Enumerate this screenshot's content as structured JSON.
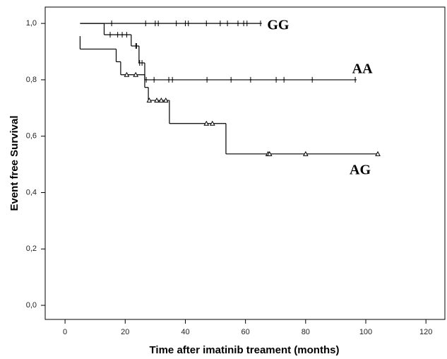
{
  "chart_data": {
    "type": "survival",
    "x_label": "Time after imatinib treament (months)",
    "y_label": "Event free Survival",
    "xlim": [
      -6.6,
      126.3
    ],
    "ylim": [
      -0.05,
      1.058
    ],
    "xticks": [
      0,
      20,
      40,
      60,
      80,
      100,
      120
    ],
    "yticks": [
      {
        "value": 0,
        "label": "0,0"
      },
      {
        "value": 0.2,
        "label": "0,2"
      },
      {
        "value": 0.4,
        "label": "0,4"
      },
      {
        "value": 0.6,
        "label": "0,6"
      },
      {
        "value": 0.8,
        "label": "0,8"
      },
      {
        "value": 1,
        "label": "1,0"
      }
    ],
    "series": [
      {
        "name": "GG",
        "color": "#000000",
        "marker": "plus",
        "x": [
          5,
          65
        ],
        "values": [
          1,
          1
        ],
        "censor_x": [
          15.5,
          26.8,
          30,
          31,
          37,
          40,
          41,
          47,
          51.6,
          54,
          57.5,
          59.4,
          60.5,
          65
        ],
        "censor_values": [
          1,
          1,
          1,
          1,
          1,
          1,
          1,
          1,
          1,
          1,
          1,
          1,
          1,
          1
        ]
      },
      {
        "name": "AA",
        "color": "#000000",
        "marker": "plus",
        "x": [
          5,
          13,
          22,
          24.6,
          26.5,
          96.5
        ],
        "values": [
          1,
          0.96,
          0.92,
          0.86,
          0.8,
          0.8
        ],
        "censor_x": [
          15,
          17.5,
          19,
          20.5,
          23.5,
          23.8,
          24.8,
          25.6,
          27,
          29.6,
          34.5,
          35.7,
          47.2,
          55.2,
          61.7,
          70.2,
          72.8,
          82.2,
          96.5
        ],
        "censor_values": [
          0.96,
          0.96,
          0.96,
          0.96,
          0.92,
          0.92,
          0.86,
          0.86,
          0.8,
          0.8,
          0.8,
          0.8,
          0.8,
          0.8,
          0.8,
          0.8,
          0.8,
          0.8,
          0.8
        ]
      },
      {
        "name": "AG",
        "color": "#000000",
        "marker": "triangle",
        "x": [
          5,
          5,
          17,
          18.5,
          26.5,
          27.7,
          34.7,
          53.5,
          104
        ],
        "values": [
          0.955,
          0.909,
          0.864,
          0.818,
          0.773,
          0.727,
          0.645,
          0.537,
          0.537
        ],
        "censor_x": [
          20.5,
          23.5,
          28,
          30.5,
          32,
          33.5,
          47,
          49,
          67.5,
          68,
          80,
          104
        ],
        "censor_values": [
          0.818,
          0.818,
          0.727,
          0.727,
          0.727,
          0.727,
          0.645,
          0.645,
          0.537,
          0.537,
          0.537,
          0.537
        ]
      }
    ]
  }
}
